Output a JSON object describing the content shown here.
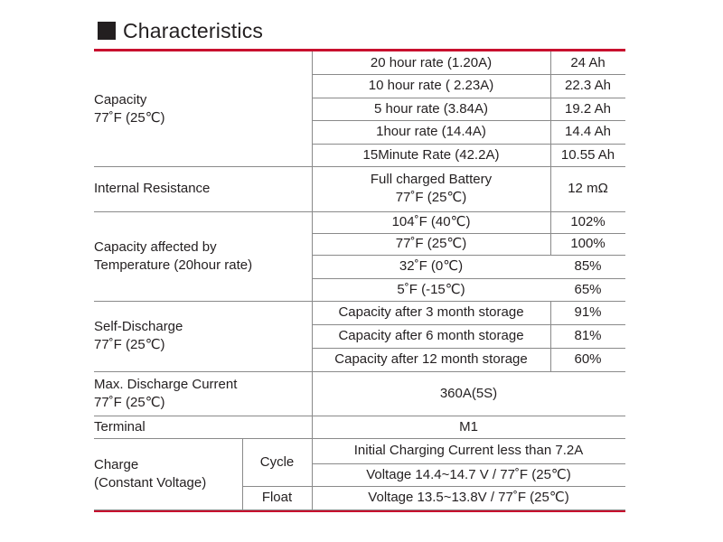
{
  "title": "Characteristics",
  "rows": {
    "capacity": {
      "label": [
        "Capacity",
        "77˚F (25℃)"
      ],
      "items": [
        {
          "cond": "20 hour rate (1.20A)",
          "value": "24 Ah"
        },
        {
          "cond": "10 hour rate ( 2.23A)",
          "value": "22.3 Ah"
        },
        {
          "cond": "5 hour rate (3.84A)",
          "value": "19.2 Ah"
        },
        {
          "cond": "1hour rate (14.4A)",
          "value": "14.4 Ah"
        },
        {
          "cond": "15Minute Rate (42.2A)",
          "value": "10.55 Ah"
        }
      ]
    },
    "internal_resistance": {
      "label": "Internal Resistance",
      "cond": [
        "Full charged Battery",
        "77˚F (25℃)"
      ],
      "value": "12 mΩ"
    },
    "temperature": {
      "label": [
        "Capacity affected by",
        "Temperature (20hour rate)"
      ],
      "items": [
        {
          "cond": "104˚F (40℃)",
          "value": "102%"
        },
        {
          "cond": "77˚F (25℃)",
          "value": "100%"
        },
        {
          "cond": "32˚F (0℃)",
          "value": "85%"
        },
        {
          "cond": "5˚F (-15℃)",
          "value": "65%"
        }
      ]
    },
    "self_discharge": {
      "label": [
        "Self-Discharge",
        "77˚F (25℃)"
      ],
      "items": [
        {
          "cond": "Capacity after 3 month storage",
          "value": "91%"
        },
        {
          "cond": "Capacity after 6 month storage",
          "value": "81%"
        },
        {
          "cond": "Capacity after 12 month storage",
          "value": "60%"
        }
      ]
    },
    "max_discharge": {
      "label": [
        "Max. Discharge Current",
        "77˚F (25℃)"
      ],
      "value": "360A(5S)"
    },
    "terminal": {
      "label": "Terminal",
      "value": "M1"
    },
    "charge": {
      "label": [
        "Charge",
        "(Constant Voltage)"
      ],
      "cycle_label": "Cycle",
      "cycle_items": [
        "Initial Charging Current less than 7.2A",
        "Voltage 14.4~14.7 V / 77˚F (25℃)"
      ],
      "float_label": "Float",
      "float_value": "Voltage 13.5~13.8V / 77˚F (25℃)"
    }
  }
}
